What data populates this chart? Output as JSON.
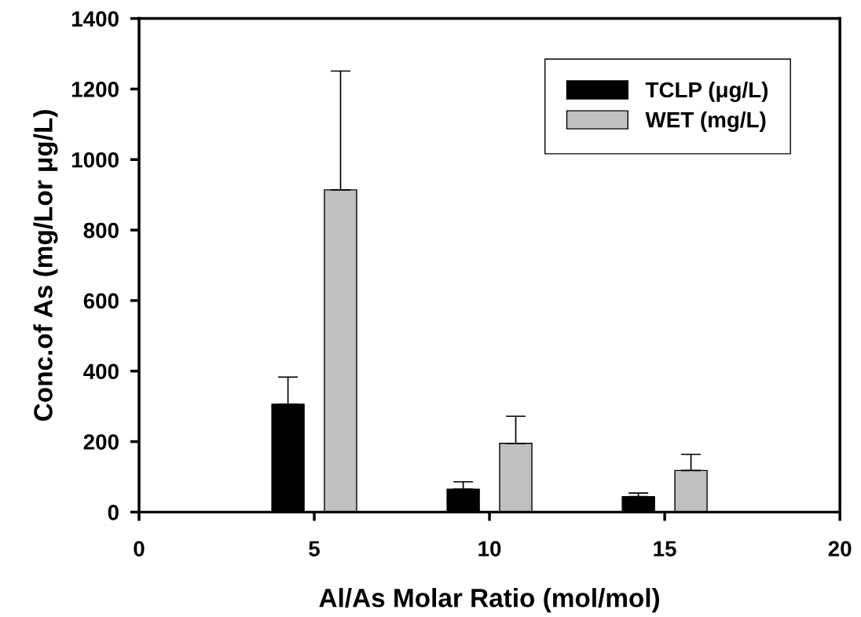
{
  "chart_data": {
    "type": "bar",
    "xlabel": "Al/As Molar Ratio (mol/mol)",
    "ylabel": "Conc.of As (mg/Lor μg/L)",
    "xlim": [
      0,
      20
    ],
    "xticks": [
      0,
      5,
      10,
      15,
      20
    ],
    "ylim": [
      0,
      1400
    ],
    "yticks": [
      0,
      200,
      400,
      600,
      800,
      1000,
      1200,
      1400
    ],
    "grid": false,
    "legend": "top right",
    "series": [
      {
        "name": "TCLP (μg/L)",
        "color": "#000000",
        "x": [
          4.25,
          9.25,
          14.25
        ],
        "values": [
          306,
          65,
          44
        ],
        "errors": [
          [
            306,
            383
          ],
          [
            65,
            86
          ],
          [
            44,
            54
          ]
        ]
      },
      {
        "name": "WET (mg/L)",
        "color": "#c0c0c0",
        "x": [
          5.75,
          10.75,
          15.75
        ],
        "values": [
          914,
          195,
          118
        ],
        "errors": [
          [
            914,
            1251
          ],
          [
            195,
            272
          ],
          [
            118,
            164
          ]
        ]
      }
    ]
  }
}
